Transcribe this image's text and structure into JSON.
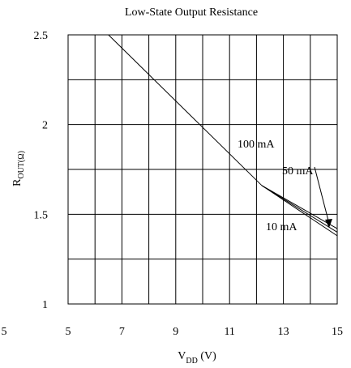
{
  "chart_data": {
    "type": "line",
    "title": "Low-State Output Resistance",
    "xlabel_main": "V",
    "xlabel_sub": "DD",
    "xlabel_unit": " (V)",
    "ylabel_main": "R",
    "ylabel_sub": "OUT(Ω)",
    "xlim": [
      5,
      15
    ],
    "ylim": [
      1,
      2.5
    ],
    "x_ticks": [
      "5",
      "7",
      "9",
      "11",
      "13",
      "15"
    ],
    "extra_x_tick_left": "5",
    "y_ticks": [
      "1",
      "1.5",
      "2",
      "2.5"
    ],
    "grid": true,
    "series": [
      {
        "name": "100 mA",
        "x": [
          6.5,
          12.2,
          15
        ],
        "y": [
          2.5,
          1.66,
          1.38
        ]
      },
      {
        "name": "50 mA",
        "x": [
          12.2,
          15
        ],
        "y": [
          1.66,
          1.42
        ]
      },
      {
        "name": "10 mA",
        "x": [
          12.2,
          15
        ],
        "y": [
          1.66,
          1.4
        ]
      }
    ],
    "annotations": [
      "100 mA",
      "50 mA",
      "10 mA"
    ]
  }
}
